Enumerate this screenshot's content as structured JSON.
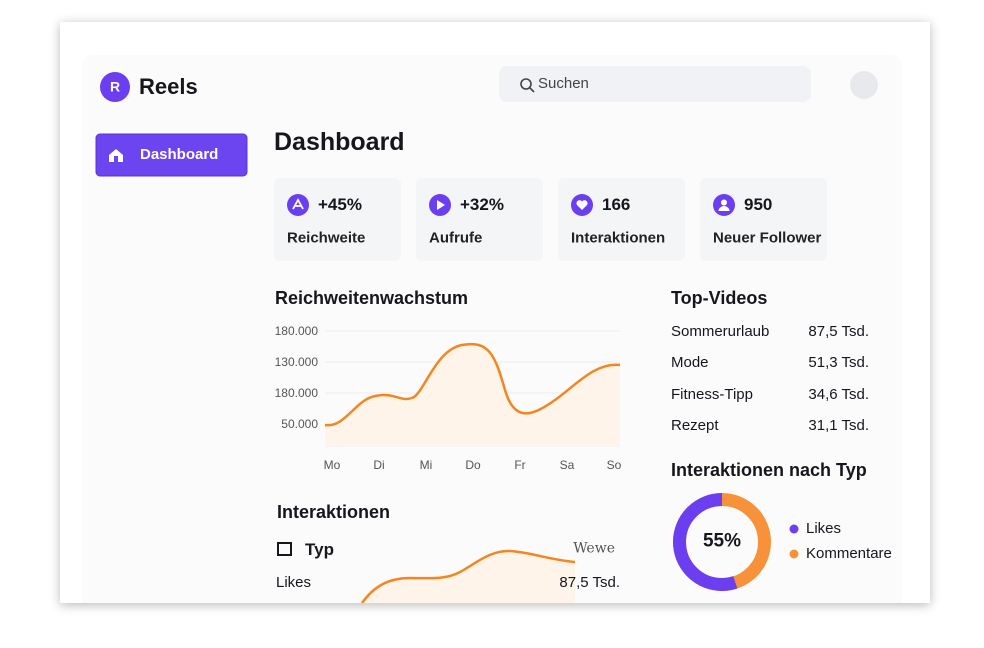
{
  "app": {
    "logo_letter": "R",
    "name": "Reels"
  },
  "search": {
    "placeholder": "Suchen"
  },
  "sidebar": {
    "items": [
      "Dashboard"
    ]
  },
  "page_title": "Dashboard",
  "stats": [
    {
      "value": "+45%",
      "label": "Reichweite"
    },
    {
      "value": "+32%",
      "label": "Aufrufe"
    },
    {
      "value": 166,
      "label": "Interaktionen"
    },
    {
      "value": 950,
      "label": "Neuer Follower"
    }
  ],
  "reach_chart": {
    "title": "Reichweitenwachstum",
    "y_labels": [
      "180.000",
      "130.000",
      "180.000",
      "50.000"
    ],
    "x_labels": [
      "Mo",
      "Di",
      "Mi",
      "Do",
      "Fr",
      "Sa",
      "So"
    ]
  },
  "top_videos": {
    "title": "Top-Videos",
    "rows": [
      {
        "name": "Sommerurlaub",
        "value": "87,5 Tsd."
      },
      {
        "name": "Mode",
        "value": "51,3 Tsd."
      },
      {
        "name": "Fitness-Tipp",
        "value": "34,6 Tsd."
      },
      {
        "name": "Rezept",
        "value": "31,1 Tsd."
      }
    ]
  },
  "interactions_by_type": {
    "title": "Interaktionen nach Typ",
    "share": 55,
    "share_label": "55%",
    "legend": [
      "Likes",
      "Kommentare"
    ]
  },
  "interactions": {
    "title": "Interaktionen",
    "column_header": "Typ",
    "column_header_2": "Wewe",
    "rows": [
      {
        "name": "Likes",
        "value": "87,5 Tsd."
      }
    ]
  }
}
